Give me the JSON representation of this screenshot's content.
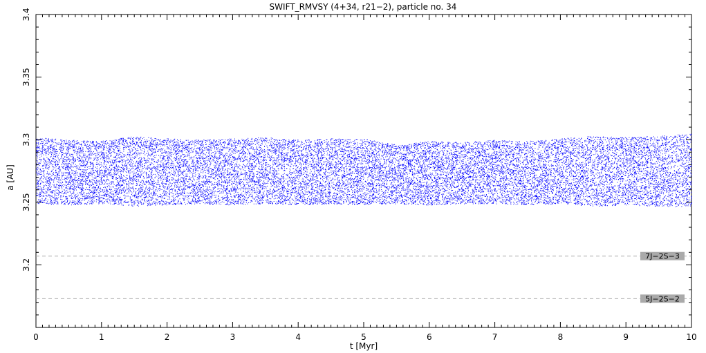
{
  "chart_data": {
    "type": "scatter",
    "title": "SWIFT_RMVSY (4+34, r21−2), particle no. 34",
    "xlabel": "t [Myr]",
    "ylabel": "a [AU]",
    "xlim": [
      0,
      10
    ],
    "ylim": [
      3.15,
      3.4
    ],
    "xticks": [
      0,
      1,
      2,
      3,
      4,
      5,
      6,
      7,
      8,
      9,
      10
    ],
    "xtick_labels": [
      "0",
      "1",
      "2",
      "3",
      "4",
      "5",
      "6",
      "7",
      "8",
      "9",
      "10"
    ],
    "yticks": [
      3.2,
      3.25,
      3.3,
      3.35,
      3.4
    ],
    "ytick_labels": [
      "3.2",
      "3.25",
      "3.3",
      "3.35",
      "3.4"
    ],
    "grid": false,
    "series": [
      {
        "color": "#0000ff",
        "band_x": [
          0,
          0.5,
          1,
          1.5,
          2,
          2.5,
          3,
          3.5,
          4,
          4.5,
          5,
          5.5,
          6,
          6.5,
          7,
          7.5,
          8,
          8.5,
          9,
          9.5,
          10
        ],
        "band_lower": [
          3.249,
          3.248,
          3.249,
          3.247,
          3.248,
          3.249,
          3.248,
          3.249,
          3.248,
          3.249,
          3.248,
          3.249,
          3.248,
          3.249,
          3.249,
          3.248,
          3.249,
          3.247,
          3.248,
          3.247,
          3.246
        ],
        "band_upper": [
          3.302,
          3.3,
          3.299,
          3.303,
          3.301,
          3.3,
          3.301,
          3.302,
          3.3,
          3.301,
          3.301,
          3.296,
          3.299,
          3.298,
          3.3,
          3.299,
          3.301,
          3.303,
          3.302,
          3.303,
          3.305
        ]
      }
    ],
    "resonances": [
      {
        "label": "7J−2S−3",
        "a": 3.207,
        "color": "#aaaaaa"
      },
      {
        "label": "5J−2S−2",
        "a": 3.173,
        "color": "#aaaaaa"
      }
    ]
  }
}
